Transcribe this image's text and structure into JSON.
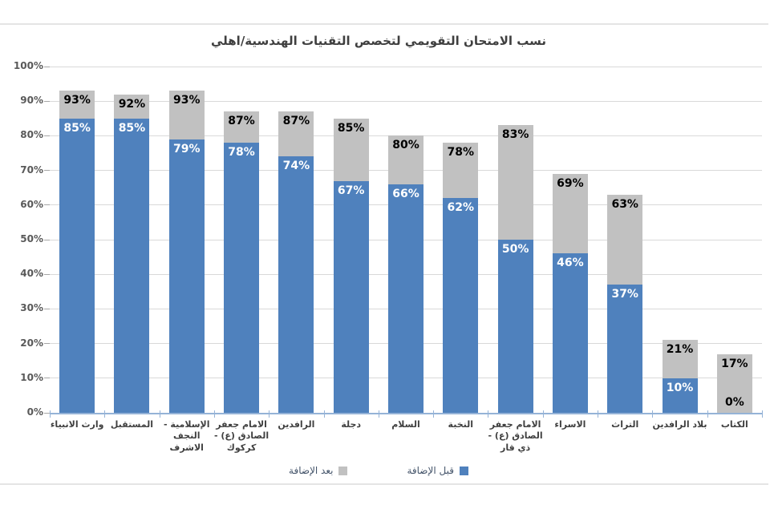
{
  "chart_data": {
    "type": "bar",
    "stacked": true,
    "title": "نسب الامتحان التقويمي لتخصص التقنيات الهندسية/اهلي",
    "categories": [
      "وارث الانبياء",
      "المستقبل",
      "الإسلامية - النجف الاشرف",
      "الامام جعفر الصادق (ع) - كركوك",
      "الرافدين",
      "دجلة",
      "السلام",
      "النخبة",
      "الامام جعفر الصادق (ع) - ذي قار",
      "الاسراء",
      "التراث",
      "بلاد الرافدين",
      "الكتاب"
    ],
    "series": [
      {
        "name": "قبل الإضافة",
        "color": "#4f81bd",
        "label_color": "#ffffff",
        "values": [
          85,
          85,
          79,
          78,
          74,
          67,
          66,
          62,
          50,
          46,
          37,
          10,
          0
        ]
      },
      {
        "name": "بعد الإضافة",
        "color": "#c1c1c1",
        "label_color": "#000000",
        "values": [
          93,
          92,
          93,
          87,
          87,
          85,
          80,
          78,
          83,
          69,
          63,
          21,
          17
        ]
      }
    ],
    "value_suffix": "%",
    "ylim": [
      0,
      100
    ],
    "ytick_step": 10,
    "grid": true,
    "legend_position": "bottom",
    "axis_color": "#95b3d7",
    "gridline_color": "#d9d9d9"
  }
}
